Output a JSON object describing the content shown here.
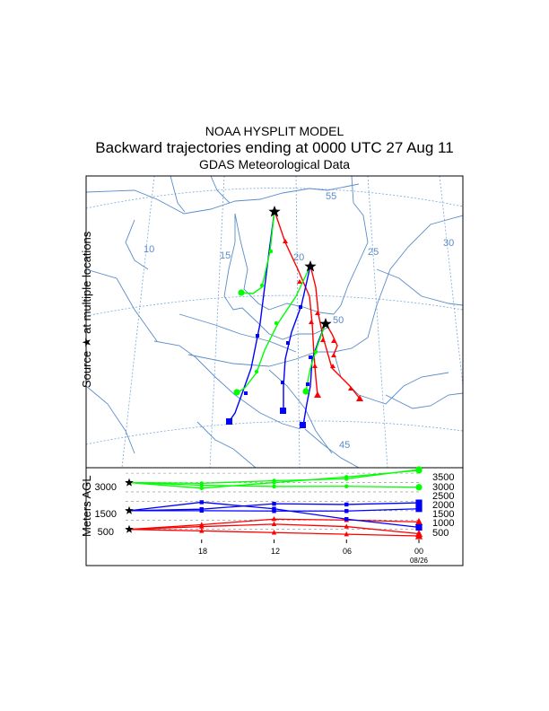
{
  "header": {
    "model": "NOAA HYSPLIT MODEL",
    "title": "Backward trajectories ending at 0000 UTC 27 Aug 11",
    "data_source": "GDAS Meteorological Data"
  },
  "map_ylabel": {
    "before": "Source",
    "star": "★",
    "after": "at multiple locations"
  },
  "height_ylabel": "Meters AGL",
  "chart_data": [
    {
      "type": "map",
      "title": "Backward trajectories ending at 0000 UTC 27 Aug 11",
      "longitude_labels": [
        "10",
        "15",
        "20",
        "25",
        "30"
      ],
      "latitude_labels": [
        "55",
        "50",
        "45"
      ],
      "source_marker": "star",
      "colors": {
        "500": "#ff0000",
        "1500": "#0000ff",
        "3000": "#00ff00"
      },
      "sources": [
        {
          "lon": 17.0,
          "lat": 53.5
        },
        {
          "lon": 19.7,
          "lat": 51.1
        },
        {
          "lon": 21.0,
          "lat": 49.7
        }
      ]
    },
    {
      "type": "line",
      "ylabel": "Meters AGL",
      "x_tick_labels": [
        "18",
        "12",
        "06",
        "00"
      ],
      "x_date_label": "08/26",
      "xlim_hours_back": [
        0,
        24
      ],
      "y_tick_labels": [
        "3500",
        "3000",
        "2500",
        "2000",
        "1500",
        "1000",
        "500"
      ],
      "start_height_labels": [
        "3000",
        "1500",
        "500"
      ],
      "series": [
        {
          "color": "#ff0000",
          "marker": "triangle",
          "x": [
            0,
            6,
            12,
            18,
            24
          ],
          "y": [
            500,
            650,
            780,
            650,
            270
          ]
        },
        {
          "color": "#ff0000",
          "marker": "triangle",
          "x": [
            0,
            6,
            12,
            18,
            24
          ],
          "y": [
            500,
            750,
            1050,
            1000,
            900
          ]
        },
        {
          "color": "#ff0000",
          "marker": "triangle",
          "x": [
            0,
            6,
            12,
            18,
            24
          ],
          "y": [
            500,
            420,
            330,
            240,
            150
          ]
        },
        {
          "color": "#0000ff",
          "marker": "square",
          "x": [
            0,
            6,
            12,
            18,
            24
          ],
          "y": [
            1500,
            1580,
            1870,
            1830,
            1920
          ]
        },
        {
          "color": "#0000ff",
          "marker": "square",
          "x": [
            0,
            6,
            12,
            18,
            24
          ],
          "y": [
            1500,
            1950,
            1600,
            1050,
            610
          ]
        },
        {
          "color": "#0000ff",
          "marker": "square",
          "x": [
            0,
            6,
            12,
            18,
            24
          ],
          "y": [
            1500,
            1500,
            1480,
            1480,
            1600
          ]
        },
        {
          "color": "#00ff00",
          "marker": "circle",
          "x": [
            0,
            6,
            12,
            18,
            24
          ],
          "y": [
            3000,
            2960,
            3100,
            3200,
            3700
          ]
        },
        {
          "color": "#00ff00",
          "marker": "circle",
          "x": [
            0,
            6,
            12,
            18,
            24
          ],
          "y": [
            3000,
            2860,
            2790,
            2800,
            2750
          ]
        },
        {
          "color": "#00ff00",
          "marker": "circle",
          "x": [
            0,
            6,
            12,
            18,
            24
          ],
          "y": [
            3000,
            2700,
            3000,
            3300,
            3650
          ]
        }
      ]
    }
  ]
}
